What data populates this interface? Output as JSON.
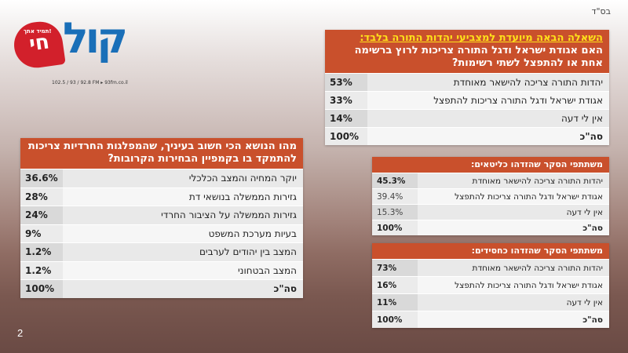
{
  "header_mark": "בס\"ד",
  "page_number": "2",
  "logo": {
    "tagline": "תמיד אתך!",
    "heart_text": "חי",
    "brand_text": "קול",
    "frequencies": "102.5 / 93 / 92.8 FM ▸ 93fm.co.il",
    "brand_color": "#1a6fb8",
    "heart_color": "#d2202b"
  },
  "main_table": {
    "question_line1": "השאלה הבאה מיועדת למצביעי יהדות התורה בלבד:",
    "question_line2": "האם אגודת ישראל ודגל התורה צריכות לרוץ ברשימה אחת או להתפצל לשתי רשימות?",
    "rows": [
      {
        "label": "יהדות התורה צריכה להישאר מאוחדת",
        "value": "53%"
      },
      {
        "label": "אגודת ישראל ודגל התורה צריכות להתפצל",
        "value": "33%"
      },
      {
        "label": "אין לי דעה",
        "value": "14%"
      },
      {
        "label": "סה\"כ",
        "value": "100%"
      }
    ]
  },
  "left_table": {
    "question": "מהו הנושא הכי חשוב בעיניך, שהמפלגות החרדיות צריכות להתמקד בו בקמפיין הבחירות הקרובות?",
    "rows": [
      {
        "label": "יוקר המחיה והמצב הכלכלי",
        "value": "36.6%"
      },
      {
        "label": "גזירות הממשלה בנושאי דת",
        "value": "28%"
      },
      {
        "label": "גזירות הממשלה על הציבור החרדי",
        "value": "24%"
      },
      {
        "label": "בעיות מערכת המשפט",
        "value": "9%"
      },
      {
        "label": "המצב בין יהודים לערבים",
        "value": "1.2%"
      },
      {
        "label": "המצב הבטחוני",
        "value": "1.2%"
      },
      {
        "label": "סה\"כ",
        "value": "100%"
      }
    ]
  },
  "lithuanian_table": {
    "title": "משתתפי הסקר שהזדהו כליטאים:",
    "rows": [
      {
        "label": "יהדות התורה צריכה להישאר מאוחדת",
        "value": "45.3%"
      },
      {
        "label": "אגודת ישראל ודגל התורה צריכות להתפצל",
        "value": "39.4%"
      },
      {
        "label": "אין לי דעה",
        "value": "15.3%"
      },
      {
        "label": "סה\"כ",
        "value": "100%"
      }
    ]
  },
  "hasidic_table": {
    "title": "משתתפי הסקר שהזדהו כחסידים:",
    "rows": [
      {
        "label": "יהדות התורה צריכה להישאר מאוחדת",
        "value": "73%"
      },
      {
        "label": "אגודת ישראל ודגל התורה צריכות להתפצל",
        "value": "16%"
      },
      {
        "label": "אין לי דעה",
        "value": "11%"
      },
      {
        "label": "סה\"כ",
        "value": "100%"
      }
    ]
  },
  "colors": {
    "header_orange": "#c9502c",
    "highlight_yellow": "#ffe11a"
  }
}
